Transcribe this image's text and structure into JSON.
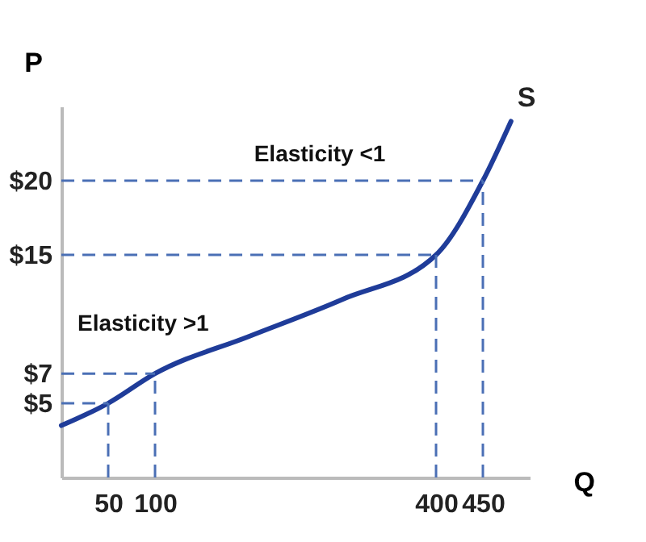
{
  "chart_data": {
    "type": "line",
    "xlabel": "Q",
    "ylabel": "P",
    "xlim": [
      0,
      500
    ],
    "ylim": [
      0,
      25
    ],
    "xticks": [
      50,
      100,
      400,
      450
    ],
    "yticks": [
      {
        "value": 5,
        "label": "$5"
      },
      {
        "value": 7,
        "label": "$7"
      },
      {
        "value": 15,
        "label": "$15"
      },
      {
        "value": 20,
        "label": "$20"
      }
    ],
    "series": [
      {
        "name": "S",
        "color": "#1f3c99",
        "x": [
          0,
          50,
          100,
          200,
          300,
          400,
          450,
          480
        ],
        "values": [
          3.5,
          5,
          7,
          9.5,
          12,
          15,
          20,
          24
        ]
      }
    ],
    "ref_lines": [
      {
        "axis": "y",
        "value": 5,
        "color": "#4a6fb5",
        "line_style": "dashed"
      },
      {
        "axis": "y",
        "value": 7,
        "color": "#4a6fb5",
        "line_style": "dashed"
      },
      {
        "axis": "y",
        "value": 15,
        "color": "#4a6fb5",
        "line_style": "dashed"
      },
      {
        "axis": "y",
        "value": 20,
        "color": "#4a6fb5",
        "line_style": "dashed"
      },
      {
        "axis": "x",
        "value": 50,
        "color": "#4a6fb5",
        "line_style": "dashed"
      },
      {
        "axis": "x",
        "value": 100,
        "color": "#4a6fb5",
        "line_style": "dashed"
      },
      {
        "axis": "x",
        "value": 400,
        "color": "#4a6fb5",
        "line_style": "dashed"
      },
      {
        "axis": "x",
        "value": 450,
        "color": "#4a6fb5",
        "line_style": "dashed"
      }
    ],
    "annotations": [
      "Elasticity <1",
      "Elasticity >1"
    ]
  }
}
